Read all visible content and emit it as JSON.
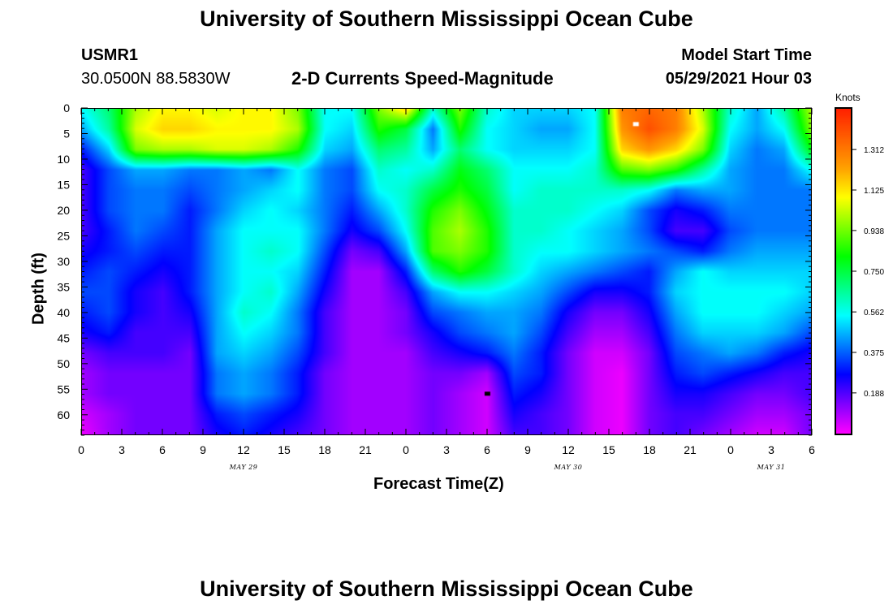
{
  "header": {
    "title": "University of Southern Mississippi Ocean Cube",
    "station_id": "USMR1",
    "coordinates": "30.0500N  88.5830W",
    "plot_title": "2-D Currents Speed-Magnitude",
    "model_start_label": "Model Start Time",
    "model_start_value": "05/29/2021 Hour 03"
  },
  "footer": {
    "title": "University of Southern Mississippi Ocean Cube"
  },
  "chart_data": {
    "type": "heatmap",
    "title": "2-D Currents Speed-Magnitude",
    "xlabel": "Forecast Time(Z)",
    "ylabel": "Depth (ft)",
    "y_inverted": true,
    "ylim": [
      0,
      64
    ],
    "xlim_hours": [
      0,
      54
    ],
    "x_ticks": [
      "0",
      "3",
      "6",
      "9",
      "12",
      "15",
      "18",
      "21",
      "0",
      "3",
      "6",
      "9",
      "12",
      "15",
      "18",
      "21",
      "0",
      "3",
      "6"
    ],
    "x_tick_hours": [
      0,
      3,
      6,
      9,
      12,
      15,
      18,
      21,
      24,
      27,
      30,
      33,
      36,
      39,
      42,
      45,
      48,
      51,
      54
    ],
    "y_ticks": [
      "0",
      "5",
      "10",
      "15",
      "20",
      "25",
      "30",
      "35",
      "40",
      "45",
      "50",
      "55",
      "60"
    ],
    "y_tick_values": [
      0,
      5,
      10,
      15,
      20,
      25,
      30,
      35,
      40,
      45,
      50,
      55,
      60
    ],
    "date_labels": [
      {
        "text": "MAY 29",
        "hour": 12
      },
      {
        "text": "MAY 30",
        "hour": 36
      },
      {
        "text": "MAY 31",
        "hour": 51
      }
    ],
    "colorbar": {
      "unit": "Knots",
      "tick_labels": [
        "0.188",
        "0.375",
        "0.562",
        "0.750",
        "0.938",
        "1.125",
        "1.312"
      ],
      "tick_values": [
        0.188,
        0.375,
        0.562,
        0.75,
        0.938,
        1.125,
        1.312
      ],
      "range": [
        0,
        1.5
      ],
      "colors": [
        "#ff00ff",
        "#8000ff",
        "#0000ff",
        "#0080ff",
        "#00ffff",
        "#00ff80",
        "#00ff00",
        "#80ff00",
        "#ffff00",
        "#ffa000",
        "#ff6000",
        "#ff2000"
      ]
    },
    "hours": [
      0,
      2,
      4,
      6,
      8,
      10,
      12,
      14,
      16,
      18,
      20,
      22,
      24,
      26,
      28,
      30,
      32,
      34,
      36,
      38,
      40,
      42,
      44,
      46,
      48,
      50,
      52,
      54
    ],
    "depths": [
      0,
      4,
      8,
      12,
      16,
      20,
      24,
      28,
      32,
      36,
      40,
      44,
      48,
      52,
      56,
      60,
      64
    ],
    "values": [
      [
        0.55,
        0.7,
        1.0,
        1.1,
        1.1,
        1.05,
        1.1,
        1.1,
        0.95,
        0.55,
        0.55,
        0.95,
        1.15,
        0.6,
        0.95,
        0.6,
        0.5,
        0.5,
        0.5,
        0.55,
        1.3,
        1.35,
        1.3,
        1.0,
        0.6,
        0.45,
        0.65,
        1.0
      ],
      [
        0.45,
        0.65,
        1.05,
        1.15,
        1.15,
        1.1,
        1.1,
        1.1,
        1.0,
        0.55,
        0.5,
        0.85,
        0.75,
        0.4,
        0.85,
        0.55,
        0.5,
        0.45,
        0.45,
        0.55,
        1.25,
        1.4,
        1.3,
        1.05,
        0.55,
        0.45,
        0.55,
        0.95
      ],
      [
        0.3,
        0.5,
        0.95,
        1.0,
        1.0,
        1.05,
        1.05,
        1.0,
        0.85,
        0.5,
        0.45,
        0.7,
        0.65,
        0.45,
        0.7,
        0.55,
        0.5,
        0.5,
        0.5,
        0.55,
        1.15,
        1.25,
        1.15,
        0.95,
        0.5,
        0.4,
        0.45,
        0.8
      ],
      [
        0.2,
        0.35,
        0.45,
        0.45,
        0.4,
        0.4,
        0.45,
        0.4,
        0.55,
        0.4,
        0.35,
        0.6,
        0.55,
        0.6,
        0.8,
        0.7,
        0.55,
        0.55,
        0.55,
        0.6,
        0.9,
        0.95,
        0.85,
        0.65,
        0.45,
        0.4,
        0.4,
        0.55
      ],
      [
        0.2,
        0.35,
        0.4,
        0.4,
        0.35,
        0.4,
        0.45,
        0.5,
        0.55,
        0.4,
        0.35,
        0.55,
        0.6,
        0.75,
        0.85,
        0.75,
        0.55,
        0.6,
        0.6,
        0.6,
        0.6,
        0.55,
        0.4,
        0.45,
        0.45,
        0.4,
        0.4,
        0.4
      ],
      [
        0.2,
        0.35,
        0.4,
        0.4,
        0.3,
        0.4,
        0.5,
        0.55,
        0.5,
        0.4,
        0.3,
        0.45,
        0.6,
        0.85,
        0.95,
        0.8,
        0.6,
        0.6,
        0.6,
        0.55,
        0.5,
        0.35,
        0.25,
        0.3,
        0.4,
        0.4,
        0.4,
        0.4
      ],
      [
        0.2,
        0.3,
        0.4,
        0.35,
        0.3,
        0.45,
        0.55,
        0.55,
        0.55,
        0.4,
        0.25,
        0.35,
        0.55,
        0.9,
        1.0,
        0.85,
        0.6,
        0.6,
        0.55,
        0.5,
        0.45,
        0.35,
        0.2,
        0.2,
        0.35,
        0.4,
        0.4,
        0.4
      ],
      [
        0.25,
        0.3,
        0.35,
        0.3,
        0.3,
        0.45,
        0.55,
        0.6,
        0.55,
        0.35,
        0.15,
        0.2,
        0.45,
        0.9,
        0.95,
        0.85,
        0.6,
        0.55,
        0.55,
        0.5,
        0.45,
        0.4,
        0.35,
        0.3,
        0.4,
        0.45,
        0.45,
        0.45
      ],
      [
        0.3,
        0.35,
        0.3,
        0.25,
        0.3,
        0.45,
        0.55,
        0.55,
        0.5,
        0.3,
        0.1,
        0.1,
        0.3,
        0.7,
        0.85,
        0.75,
        0.6,
        0.5,
        0.45,
        0.4,
        0.35,
        0.3,
        0.45,
        0.55,
        0.5,
        0.5,
        0.5,
        0.5
      ],
      [
        0.35,
        0.35,
        0.25,
        0.2,
        0.3,
        0.45,
        0.55,
        0.6,
        0.45,
        0.25,
        0.1,
        0.1,
        0.2,
        0.45,
        0.55,
        0.55,
        0.5,
        0.45,
        0.35,
        0.25,
        0.25,
        0.3,
        0.5,
        0.55,
        0.55,
        0.55,
        0.55,
        0.5
      ],
      [
        0.3,
        0.35,
        0.25,
        0.2,
        0.25,
        0.45,
        0.6,
        0.55,
        0.4,
        0.2,
        0.1,
        0.1,
        0.15,
        0.35,
        0.4,
        0.45,
        0.45,
        0.4,
        0.25,
        0.15,
        0.15,
        0.25,
        0.45,
        0.55,
        0.55,
        0.55,
        0.5,
        0.45
      ],
      [
        0.25,
        0.3,
        0.2,
        0.2,
        0.2,
        0.45,
        0.55,
        0.5,
        0.4,
        0.2,
        0.1,
        0.1,
        0.15,
        0.25,
        0.35,
        0.4,
        0.45,
        0.35,
        0.2,
        0.1,
        0.1,
        0.2,
        0.4,
        0.5,
        0.5,
        0.5,
        0.45,
        0.35
      ],
      [
        0.15,
        0.2,
        0.2,
        0.2,
        0.15,
        0.45,
        0.5,
        0.45,
        0.35,
        0.2,
        0.1,
        0.1,
        0.1,
        0.2,
        0.25,
        0.3,
        0.4,
        0.3,
        0.15,
        0.05,
        0.05,
        0.15,
        0.35,
        0.4,
        0.45,
        0.4,
        0.3,
        0.25
      ],
      [
        0.1,
        0.15,
        0.15,
        0.15,
        0.15,
        0.4,
        0.45,
        0.4,
        0.3,
        0.15,
        0.1,
        0.1,
        0.1,
        0.15,
        0.15,
        0.1,
        0.35,
        0.3,
        0.15,
        0.05,
        0.02,
        0.15,
        0.3,
        0.35,
        0.3,
        0.25,
        0.2,
        0.2
      ],
      [
        0.1,
        0.15,
        0.15,
        0.15,
        0.15,
        0.4,
        0.45,
        0.4,
        0.3,
        0.15,
        0.1,
        0.1,
        0.1,
        0.15,
        0.1,
        0.05,
        0.3,
        0.25,
        0.15,
        0.05,
        0.02,
        0.15,
        0.25,
        0.25,
        0.2,
        0.15,
        0.15,
        0.2
      ],
      [
        0.05,
        0.1,
        0.15,
        0.15,
        0.15,
        0.3,
        0.35,
        0.3,
        0.25,
        0.15,
        0.1,
        0.1,
        0.1,
        0.15,
        0.1,
        0.05,
        0.25,
        0.2,
        0.15,
        0.05,
        0.02,
        0.15,
        0.2,
        0.2,
        0.15,
        0.1,
        0.1,
        0.15
      ],
      [
        0.02,
        0.1,
        0.15,
        0.15,
        0.15,
        0.25,
        0.3,
        0.25,
        0.2,
        0.15,
        0.1,
        0.1,
        0.1,
        0.15,
        0.1,
        0.05,
        0.2,
        0.2,
        0.15,
        0.05,
        0.02,
        0.15,
        0.2,
        0.15,
        0.1,
        0.05,
        0.05,
        0.15
      ]
    ],
    "markers": [
      {
        "hour": 41,
        "depth": 3,
        "color": "#ffffff"
      },
      {
        "hour": 30,
        "depth": 56,
        "color": "#000000"
      }
    ]
  }
}
